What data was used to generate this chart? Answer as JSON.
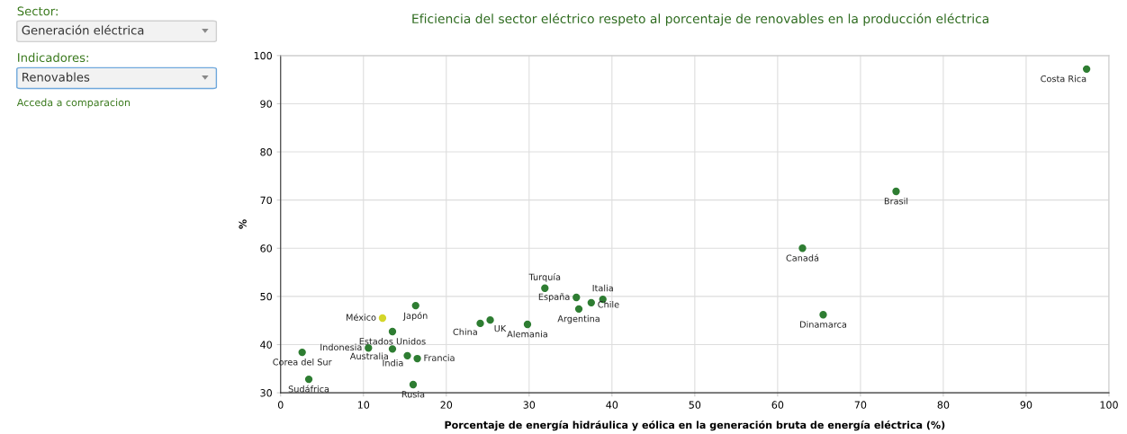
{
  "chart_data": {
    "type": "scatter",
    "title": "Eficiencia del sector eléctrico respeto al porcentaje de renovables en la producción eléctrica",
    "xlabel": "Porcentaje de energía hidráulica y eólica en la generación bruta de energía eléctrica (%)",
    "ylabel": "%",
    "xlim": [
      0,
      100
    ],
    "xticks": [
      0,
      10,
      20,
      30,
      40,
      50,
      60,
      70,
      80,
      90,
      100
    ],
    "ylim": [
      30,
      100
    ],
    "yticks": [
      30,
      40,
      50,
      60,
      70,
      80,
      90,
      100
    ],
    "grid": true,
    "legend": false,
    "marker": "circle",
    "annotations": [
      "Sector:",
      "Generación eléctrica",
      "Indicadores:",
      "Renovables",
      "Acceda a comparacion"
    ],
    "series": [
      {
        "name": "Costa Rica",
        "color": "#2e7d32",
        "x": [
          97.3
        ],
        "values": [
          97.2
        ]
      },
      {
        "name": "Brasil",
        "color": "#2e7d32",
        "x": [
          74.3
        ],
        "values": [
          71.8
        ]
      },
      {
        "name": "Canadá",
        "color": "#2e7d32",
        "x": [
          63.0
        ],
        "values": [
          60.0
        ]
      },
      {
        "name": "Dinamarca",
        "color": "#2e7d32",
        "x": [
          65.5
        ],
        "values": [
          46.2
        ]
      },
      {
        "name": "Turquía",
        "color": "#2e7d32",
        "x": [
          31.9
        ],
        "values": [
          51.7
        ]
      },
      {
        "name": "España",
        "color": "#2e7d32",
        "x": [
          35.7
        ],
        "values": [
          49.8
        ]
      },
      {
        "name": "Italia",
        "color": "#2e7d32",
        "x": [
          38.9
        ],
        "values": [
          49.4
        ]
      },
      {
        "name": "Chile",
        "color": "#2e7d32",
        "x": [
          37.5
        ],
        "values": [
          48.7
        ]
      },
      {
        "name": "Argentina",
        "color": "#2e7d32",
        "x": [
          36.0
        ],
        "values": [
          47.4
        ]
      },
      {
        "name": "UK",
        "color": "#2e7d32",
        "x": [
          25.3
        ],
        "values": [
          45.1
        ]
      },
      {
        "name": "China",
        "color": "#2e7d32",
        "x": [
          24.1
        ],
        "values": [
          44.4
        ]
      },
      {
        "name": "Alemania",
        "color": "#2e7d32",
        "x": [
          29.8
        ],
        "values": [
          44.2
        ]
      },
      {
        "name": "Japón",
        "color": "#2e7d32",
        "x": [
          16.3
        ],
        "values": [
          48.1
        ]
      },
      {
        "name": "México",
        "color": "#d4d62a",
        "x": [
          12.3
        ],
        "values": [
          45.5
        ]
      },
      {
        "name": "Estados Unidos",
        "color": "#2e7d32",
        "x": [
          13.5
        ],
        "values": [
          42.7
        ]
      },
      {
        "name": "Indonesia",
        "color": "#2e7d32",
        "x": [
          10.6
        ],
        "values": [
          39.3
        ]
      },
      {
        "name": "Australia",
        "color": "#2e7d32",
        "x": [
          13.5
        ],
        "values": [
          39.1
        ]
      },
      {
        "name": "India",
        "color": "#2e7d32",
        "x": [
          15.3
        ],
        "values": [
          37.7
        ]
      },
      {
        "name": "Francia",
        "color": "#2e7d32",
        "x": [
          16.5
        ],
        "values": [
          37.1
        ]
      },
      {
        "name": "Corea del Sur",
        "color": "#2e7d32",
        "x": [
          2.6
        ],
        "values": [
          38.4
        ]
      },
      {
        "name": "Sudáfrica",
        "color": "#2e7d32",
        "x": [
          3.4
        ],
        "values": [
          32.8
        ]
      },
      {
        "name": "Rusia",
        "color": "#2e7d32",
        "x": [
          16.0
        ],
        "values": [
          31.7
        ]
      }
    ]
  }
}
